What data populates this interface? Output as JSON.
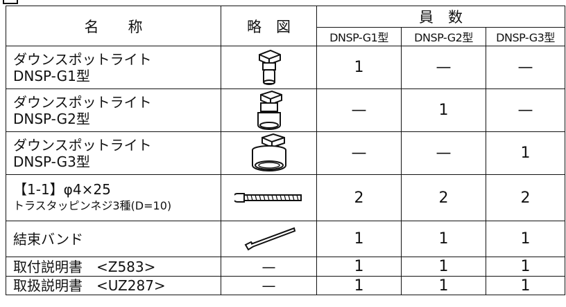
{
  "table": {
    "headers": {
      "name": "名　　称",
      "sketch": "略　図",
      "count": "員　数",
      "models": [
        "DNSP-G1型",
        "DNSP-G2型",
        "DNSP-G3型"
      ]
    },
    "rows": [
      {
        "name": [
          "ダウンスポットライト",
          "DNSP-G1型"
        ],
        "counts": [
          "1",
          "—",
          "—"
        ]
      },
      {
        "name": [
          "ダウンスポットライト",
          "DNSP-G2型"
        ],
        "counts": [
          "—",
          "1",
          "—"
        ]
      },
      {
        "name": [
          "ダウンスポットライト",
          "DNSP-G3型"
        ],
        "counts": [
          "—",
          "—",
          "1"
        ]
      },
      {
        "name": [
          "【1-1】φ4×25",
          "トラスタッピンネジ3種(D=10)"
        ],
        "counts": [
          "2",
          "2",
          "2"
        ]
      },
      {
        "name": [
          "結束バンド"
        ],
        "counts": [
          "1",
          "1",
          "1"
        ]
      },
      {
        "name": [
          "取付説明書　<Z583>"
        ],
        "sketch": "—",
        "counts": [
          "1",
          "1",
          "1"
        ]
      },
      {
        "name": [
          "取扱説明書　<UZ287>"
        ],
        "sketch": "—",
        "counts": [
          "1",
          "1",
          "1"
        ]
      }
    ]
  }
}
